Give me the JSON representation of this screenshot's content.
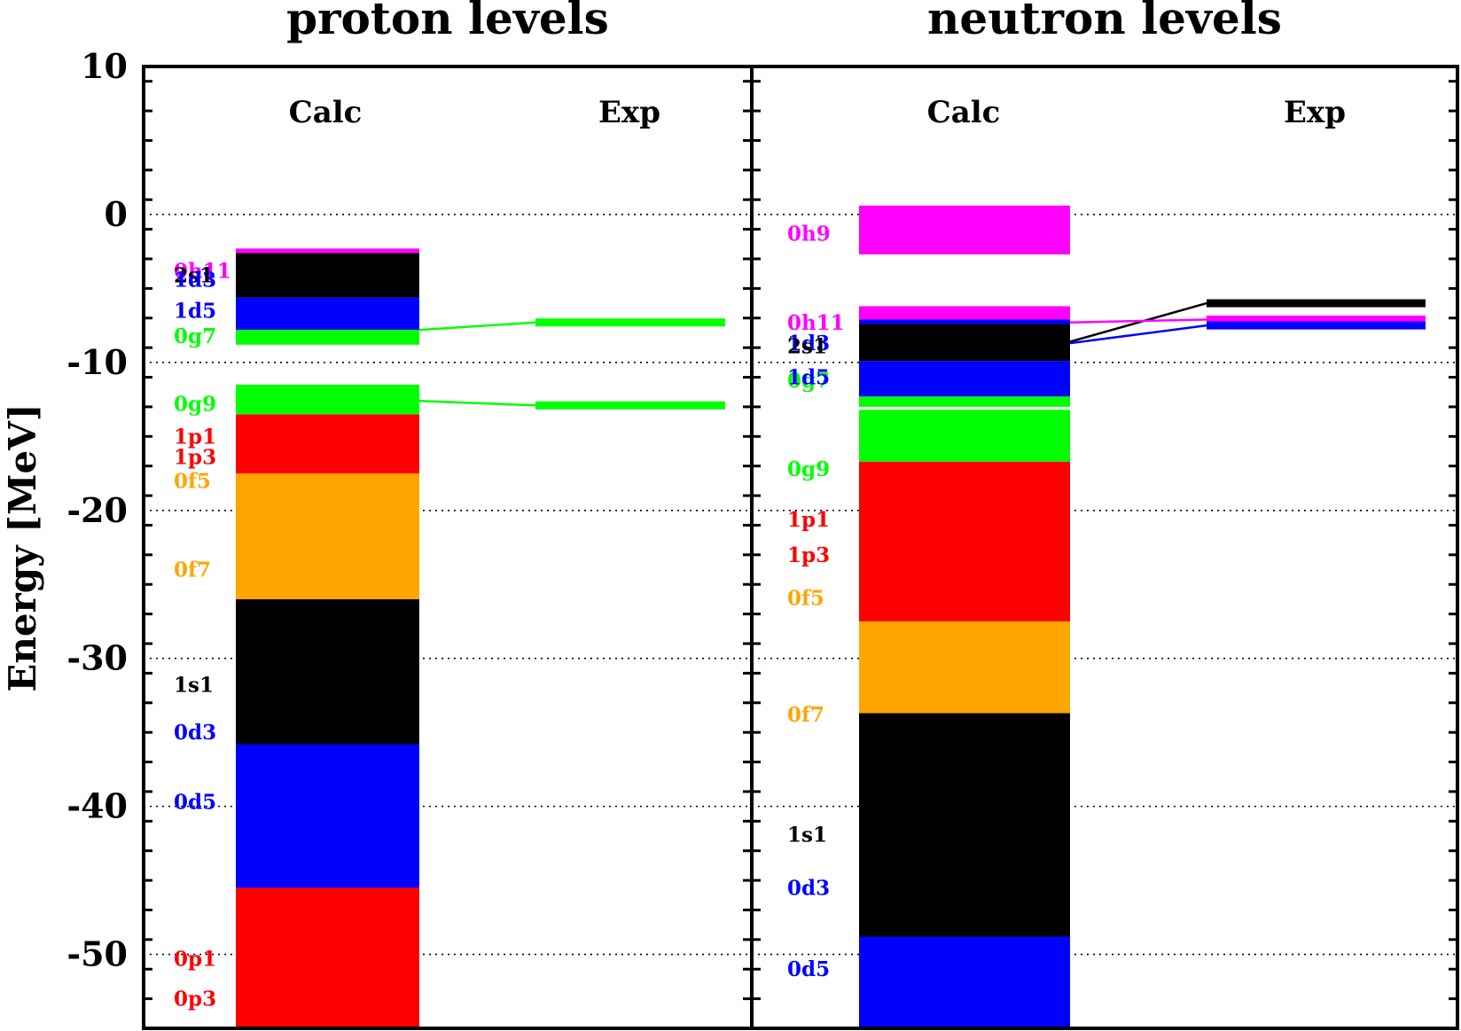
{
  "chart_data": {
    "type": "bar",
    "ylabel": "Energy [MeV]",
    "ylim": [
      -55,
      10
    ],
    "yticks": [
      10,
      0,
      -10,
      -20,
      -30,
      -40,
      -50
    ],
    "ytick_labels": [
      "10",
      "0",
      "-10",
      "-20",
      "-30",
      "-40",
      "-50"
    ],
    "grid": "dotted horizontal at major ticks",
    "colors": {
      "s": "#000000",
      "d": "#0000ff",
      "p": "#ff0000",
      "f": "#ffa500",
      "g": "#00ff00",
      "h": "#ff00ff"
    },
    "panels": [
      {
        "title": "proton levels",
        "calc_label": "Calc",
        "exp_label": "Exp",
        "calc_bands": [
          {
            "top": -55.0,
            "bottom": -45.5,
            "color": "#ff0000"
          },
          {
            "top": -45.5,
            "bottom": -35.8,
            "color": "#0000ff"
          },
          {
            "top": -35.8,
            "bottom": -26.0,
            "color": "#000000"
          },
          {
            "top": -26.0,
            "bottom": -17.5,
            "color": "#ffa500"
          },
          {
            "top": -17.5,
            "bottom": -13.5,
            "color": "#ff0000"
          },
          {
            "top": -13.5,
            "bottom": -11.5,
            "color": "#00ff00"
          },
          {
            "top": -8.8,
            "bottom": -7.8,
            "color": "#00ff00"
          },
          {
            "top": -7.8,
            "bottom": -5.6,
            "color": "#0000ff"
          },
          {
            "top": -5.6,
            "bottom": -2.6,
            "color": "#000000"
          },
          {
            "top": -2.6,
            "bottom": -2.3,
            "color": "#ff00ff"
          }
        ],
        "labels": [
          {
            "text": "0h11",
            "e": -3.8,
            "color": "#ff00ff"
          },
          {
            "text": "2s1",
            "e": -4.1,
            "color": "#000000"
          },
          {
            "text": "1d3",
            "e": -4.4,
            "color": "#0000ff"
          },
          {
            "text": "1d5",
            "e": -6.5,
            "color": "#0000ff"
          },
          {
            "text": "0g7",
            "e": -8.2,
            "color": "#00ff00"
          },
          {
            "text": "0g9",
            "e": -12.8,
            "color": "#00ff00"
          },
          {
            "text": "1p1",
            "e": -15.0,
            "color": "#ff0000"
          },
          {
            "text": "1p3",
            "e": -16.4,
            "color": "#ff0000"
          },
          {
            "text": "0f5",
            "e": -18.0,
            "color": "#ffa500"
          },
          {
            "text": "0f7",
            "e": -24.0,
            "color": "#ffa500"
          },
          {
            "text": "1s1",
            "e": -31.8,
            "color": "#000000"
          },
          {
            "text": "0d3",
            "e": -35.0,
            "color": "#0000ff"
          },
          {
            "text": "0d5",
            "e": -39.7,
            "color": "#0000ff"
          },
          {
            "text": "0p1",
            "e": -50.3,
            "color": "#ff0000"
          },
          {
            "text": "0p3",
            "e": -53.0,
            "color": "#ff0000"
          }
        ],
        "exp_levels": [
          {
            "e": -7.3,
            "color": "#00ff00",
            "from": -7.8
          },
          {
            "e": -12.9,
            "color": "#00ff00",
            "from": -12.6
          }
        ]
      },
      {
        "title": "neutron levels",
        "calc_label": "Calc",
        "exp_label": "Exp",
        "calc_bands": [
          {
            "top": -55.0,
            "bottom": -48.8,
            "color": "#0000ff"
          },
          {
            "top": -48.8,
            "bottom": -33.7,
            "color": "#000000"
          },
          {
            "top": -33.7,
            "bottom": -27.5,
            "color": "#ffa500"
          },
          {
            "top": -27.5,
            "bottom": -16.7,
            "color": "#ff0000"
          },
          {
            "top": -16.7,
            "bottom": -13.2,
            "color": "#00ff00"
          },
          {
            "top": -13.0,
            "bottom": -12.3,
            "color": "#00ff00"
          },
          {
            "top": -12.3,
            "bottom": -9.9,
            "color": "#0000ff"
          },
          {
            "top": -9.9,
            "bottom": -7.4,
            "color": "#000000"
          },
          {
            "top": -7.4,
            "bottom": -7.1,
            "color": "#0000ff"
          },
          {
            "top": -7.1,
            "bottom": -6.2,
            "color": "#ff00ff"
          },
          {
            "top": -2.7,
            "bottom": 0.6,
            "color": "#ff00ff"
          }
        ],
        "labels": [
          {
            "text": "0h9",
            "e": -1.3,
            "color": "#ff00ff"
          },
          {
            "text": "0h11",
            "e": -7.3,
            "color": "#ff00ff"
          },
          {
            "text": "1d3",
            "e": -8.7,
            "color": "#0000ff"
          },
          {
            "text": "2s1",
            "e": -8.9,
            "color": "#000000"
          },
          {
            "text": "0g7",
            "e": -11.2,
            "color": "#00ff00"
          },
          {
            "text": "1d5",
            "e": -11.0,
            "color": "#0000ff"
          },
          {
            "text": "0g9",
            "e": -17.2,
            "color": "#00ff00"
          },
          {
            "text": "1p1",
            "e": -20.6,
            "color": "#ff0000"
          },
          {
            "text": "1p3",
            "e": -23.0,
            "color": "#ff0000"
          },
          {
            "text": "0f5",
            "e": -25.9,
            "color": "#ffa500"
          },
          {
            "text": "0f7",
            "e": -33.8,
            "color": "#ffa500"
          },
          {
            "text": "1s1",
            "e": -41.9,
            "color": "#000000"
          },
          {
            "text": "0d3",
            "e": -45.5,
            "color": "#0000ff"
          },
          {
            "text": "0d5",
            "e": -51.0,
            "color": "#0000ff"
          }
        ],
        "exp_levels": [
          {
            "e": -6.0,
            "color": "#000000",
            "from": -8.6
          },
          {
            "e": -7.1,
            "color": "#ff00ff",
            "from": -7.3
          },
          {
            "e": -7.5,
            "color": "#0000ff",
            "from": -8.7
          }
        ]
      }
    ]
  }
}
